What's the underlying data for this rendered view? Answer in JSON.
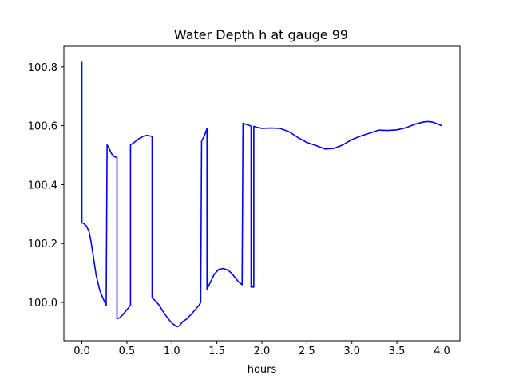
{
  "chart_data": {
    "type": "line",
    "title": "Water Depth h at gauge 99",
    "xlabel": "hours",
    "ylabel": "",
    "xlim": [
      -0.2,
      4.2
    ],
    "ylim": [
      99.87,
      100.87
    ],
    "grid": false,
    "x_ticks": [
      0.0,
      0.5,
      1.0,
      1.5,
      2.0,
      2.5,
      3.0,
      3.5,
      4.0
    ],
    "x_tick_labels": [
      "0.0",
      "0.5",
      "1.0",
      "1.5",
      "2.0",
      "2.5",
      "3.0",
      "3.5",
      "4.0"
    ],
    "y_ticks": [
      100.0,
      100.2,
      100.4,
      100.6,
      100.8
    ],
    "y_tick_labels": [
      "100.0",
      "100.2",
      "100.4",
      "100.6",
      "100.8"
    ],
    "series": [
      {
        "color": "#0000ff",
        "points": [
          [
            0.0,
            100.817
          ],
          [
            0.0,
            100.27
          ],
          [
            0.02,
            100.268
          ],
          [
            0.05,
            100.26
          ],
          [
            0.08,
            100.24
          ],
          [
            0.1,
            100.21
          ],
          [
            0.13,
            100.15
          ],
          [
            0.16,
            100.09
          ],
          [
            0.2,
            100.04
          ],
          [
            0.24,
            100.01
          ],
          [
            0.27,
            99.99
          ],
          [
            0.28,
            100.535
          ],
          [
            0.3,
            100.525
          ],
          [
            0.33,
            100.505
          ],
          [
            0.36,
            100.495
          ],
          [
            0.39,
            100.492
          ],
          [
            0.39,
            99.945
          ],
          [
            0.42,
            99.948
          ],
          [
            0.46,
            99.96
          ],
          [
            0.5,
            99.975
          ],
          [
            0.54,
            99.99
          ],
          [
            0.54,
            100.535
          ],
          [
            0.58,
            100.543
          ],
          [
            0.63,
            100.555
          ],
          [
            0.68,
            100.564
          ],
          [
            0.72,
            100.567
          ],
          [
            0.78,
            100.564
          ],
          [
            0.78,
            100.015
          ],
          [
            0.82,
            100.005
          ],
          [
            0.86,
            99.99
          ],
          [
            0.9,
            99.97
          ],
          [
            0.95,
            99.948
          ],
          [
            1.0,
            99.93
          ],
          [
            1.05,
            99.918
          ],
          [
            1.08,
            99.92
          ],
          [
            1.12,
            99.935
          ],
          [
            1.17,
            99.945
          ],
          [
            1.2,
            99.955
          ],
          [
            1.25,
            99.972
          ],
          [
            1.3,
            99.99
          ],
          [
            1.32,
            100.0
          ],
          [
            1.33,
            100.548
          ],
          [
            1.36,
            100.565
          ],
          [
            1.39,
            100.59
          ],
          [
            1.39,
            100.045
          ],
          [
            1.43,
            100.07
          ],
          [
            1.47,
            100.095
          ],
          [
            1.52,
            100.112
          ],
          [
            1.57,
            100.115
          ],
          [
            1.62,
            100.11
          ],
          [
            1.66,
            100.1
          ],
          [
            1.7,
            100.085
          ],
          [
            1.74,
            100.07
          ],
          [
            1.78,
            100.06
          ],
          [
            1.79,
            100.608
          ],
          [
            1.83,
            100.604
          ],
          [
            1.87,
            100.6
          ],
          [
            1.88,
            100.598
          ],
          [
            1.88,
            100.052
          ],
          [
            1.91,
            100.052
          ],
          [
            1.91,
            100.598
          ],
          [
            1.95,
            100.594
          ],
          [
            2.0,
            100.591
          ],
          [
            2.1,
            100.592
          ],
          [
            2.2,
            100.591
          ],
          [
            2.3,
            100.58
          ],
          [
            2.4,
            100.56
          ],
          [
            2.5,
            100.543
          ],
          [
            2.6,
            100.533
          ],
          [
            2.7,
            100.521
          ],
          [
            2.8,
            100.523
          ],
          [
            2.9,
            100.535
          ],
          [
            3.0,
            100.553
          ],
          [
            3.1,
            100.565
          ],
          [
            3.2,
            100.575
          ],
          [
            3.3,
            100.585
          ],
          [
            3.4,
            100.584
          ],
          [
            3.5,
            100.586
          ],
          [
            3.6,
            100.593
          ],
          [
            3.7,
            100.605
          ],
          [
            3.8,
            100.613
          ],
          [
            3.85,
            100.614
          ],
          [
            3.9,
            100.612
          ],
          [
            4.0,
            100.6
          ]
        ]
      }
    ]
  }
}
